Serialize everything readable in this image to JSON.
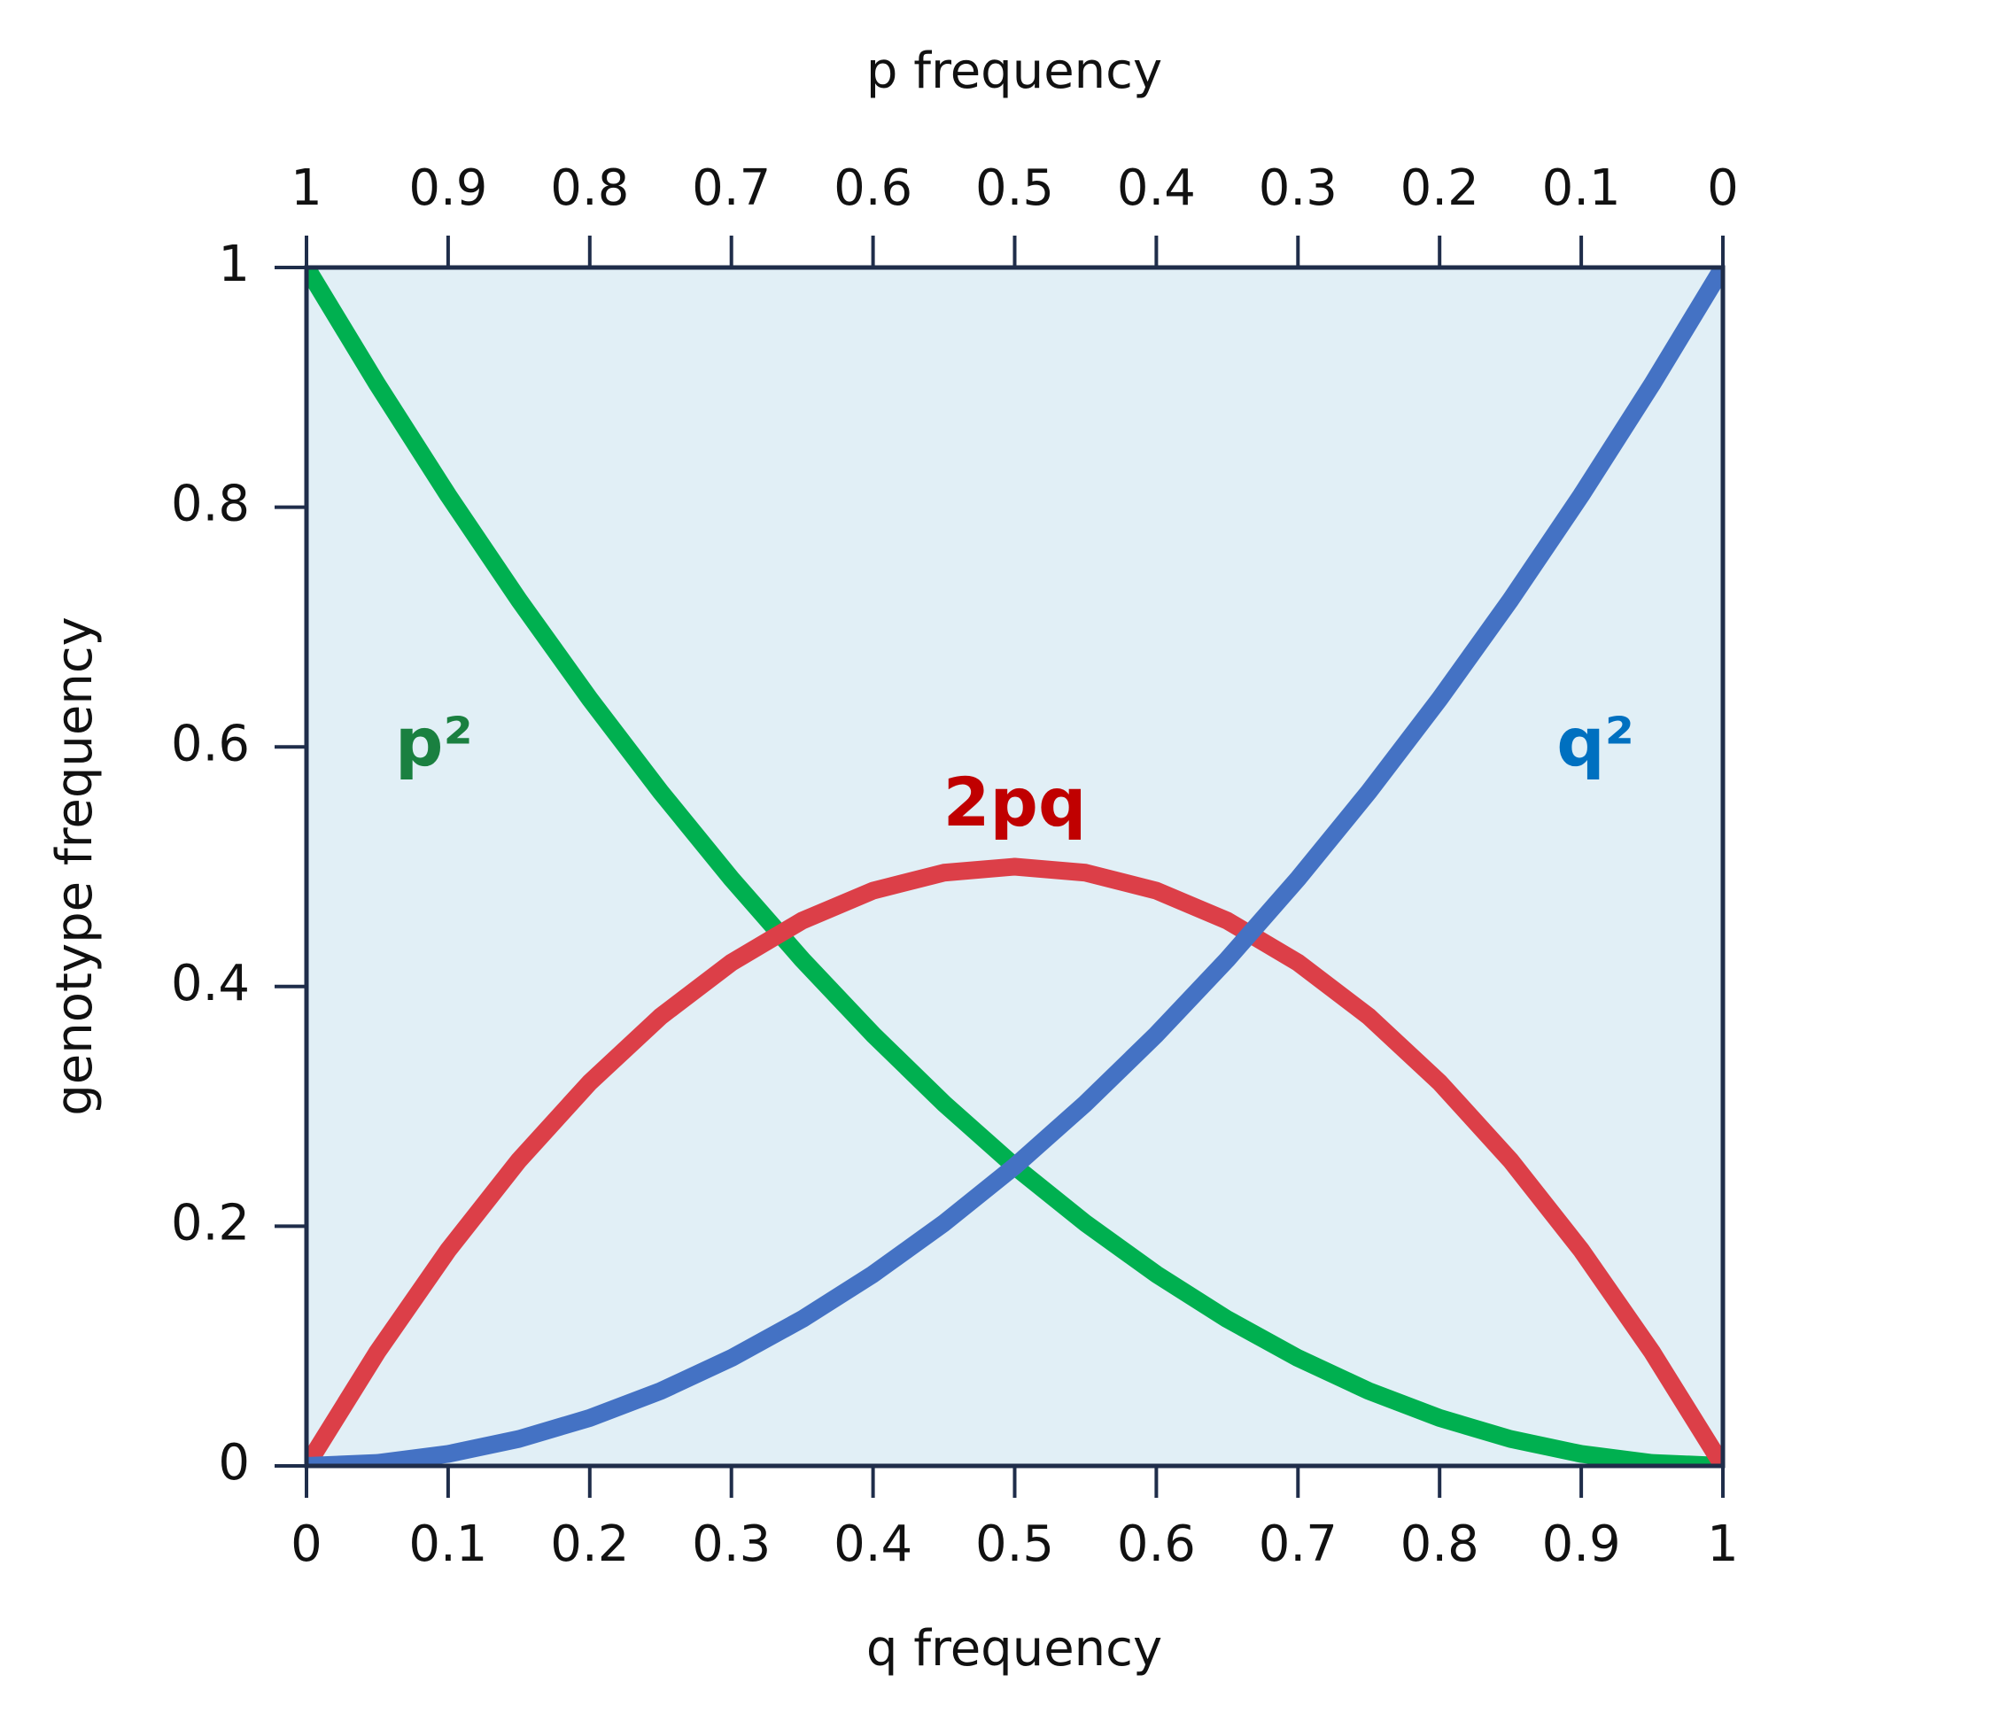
{
  "chart_data": {
    "type": "line",
    "x_label": "q frequency",
    "x2_label": "p frequency",
    "y_label": "genotype frequency",
    "x": [
      0,
      0.05,
      0.1,
      0.15,
      0.2,
      0.25,
      0.3,
      0.35,
      0.4,
      0.45,
      0.5,
      0.55,
      0.6,
      0.65,
      0.7,
      0.75,
      0.8,
      0.85,
      0.9,
      0.95,
      1
    ],
    "series": [
      {
        "name": "p²",
        "color": "#00b050",
        "label_color": "#1a8040",
        "values": [
          1,
          0.9025,
          0.81,
          0.7225,
          0.64,
          0.5625,
          0.49,
          0.4225,
          0.36,
          0.3025,
          0.25,
          0.2025,
          0.16,
          0.1225,
          0.09,
          0.0625,
          0.04,
          0.0225,
          0.01,
          0.0025,
          0
        ]
      },
      {
        "name": "2pq",
        "color": "#dc3f48",
        "label_color": "#c00000",
        "values": [
          0,
          0.095,
          0.18,
          0.255,
          0.32,
          0.375,
          0.42,
          0.455,
          0.48,
          0.495,
          0.5,
          0.495,
          0.48,
          0.455,
          0.42,
          0.375,
          0.32,
          0.255,
          0.18,
          0.095,
          0
        ]
      },
      {
        "name": "q²",
        "color": "#4472c4",
        "label_color": "#0070c0",
        "values": [
          0,
          0.0025,
          0.01,
          0.0225,
          0.04,
          0.0625,
          0.09,
          0.1225,
          0.16,
          0.2025,
          0.25,
          0.3025,
          0.36,
          0.4225,
          0.49,
          0.5625,
          0.64,
          0.7225,
          0.81,
          0.9025,
          1
        ]
      }
    ],
    "xlim": [
      0,
      1
    ],
    "xticks": [
      0,
      0.1,
      0.2,
      0.3,
      0.4,
      0.5,
      0.6,
      0.7,
      0.8,
      0.9,
      1
    ],
    "x2lim": [
      1,
      0
    ],
    "x2ticks": [
      1,
      0.9,
      0.8,
      0.7,
      0.6,
      0.5,
      0.4,
      0.3,
      0.2,
      0.1,
      0
    ],
    "ylim": [
      0,
      1
    ],
    "yticks": [
      0,
      0.2,
      0.4,
      0.6,
      0.8,
      1
    ],
    "background": "#e1eff6",
    "grid": false
  }
}
